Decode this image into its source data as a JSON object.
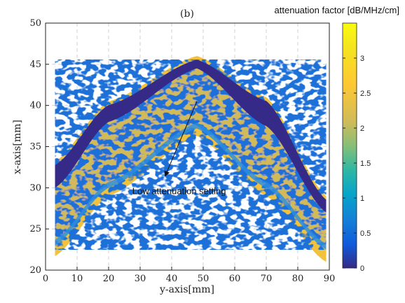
{
  "chart_data": {
    "type": "heatmap",
    "panel_label": "(b)",
    "xlabel": "y-axis[mm]",
    "ylabel": "x-axis[mm]",
    "xlim": [
      0,
      90
    ],
    "ylim": [
      20,
      50
    ],
    "xticks": [
      0,
      10,
      20,
      30,
      40,
      50,
      60,
      70,
      80,
      90
    ],
    "yticks": [
      20,
      25,
      30,
      35,
      40,
      45,
      50
    ],
    "grid": true,
    "colorbar": {
      "title": "attenuation factor [dB/MHz/cm]",
      "range": [
        0,
        3.5
      ],
      "ticks": [
        0,
        0.5,
        1,
        1.5,
        2,
        2.5,
        3
      ],
      "colormap": "parula"
    },
    "annotation": {
      "text": "Low attenuation setting",
      "arrow_from": [
        48,
        40.5
      ],
      "arrow_to": [
        38,
        31.5
      ],
      "text_pos": [
        27.5,
        29.2
      ]
    },
    "region": {
      "x_start": 3,
      "x_end": 89,
      "apex_x": 48,
      "outer_top_edge": [
        [
          3,
          33.2
        ],
        [
          20,
          40.5
        ],
        [
          48,
          46
        ],
        [
          70,
          41
        ],
        [
          89,
          29
        ]
      ],
      "dark_band_bottom_edge": [
        [
          3,
          30
        ],
        [
          20,
          38
        ],
        [
          48,
          44.5
        ],
        [
          70,
          37.5
        ],
        [
          89,
          27
        ]
      ],
      "inner_bottom_edge": [
        [
          3,
          23
        ],
        [
          20,
          30
        ],
        [
          48,
          37.2
        ],
        [
          70,
          30
        ],
        [
          89,
          22.5
        ]
      ],
      "outer_bottom_edge": [
        [
          3,
          21.7
        ],
        [
          20,
          29
        ],
        [
          48,
          36.3
        ],
        [
          70,
          29
        ],
        [
          89,
          21
        ]
      ],
      "layer_values": {
        "outer_rim": 3.3,
        "dark_band": 0.1,
        "speckle_mean": 1.8,
        "inner_rim": 2.9
      }
    }
  }
}
